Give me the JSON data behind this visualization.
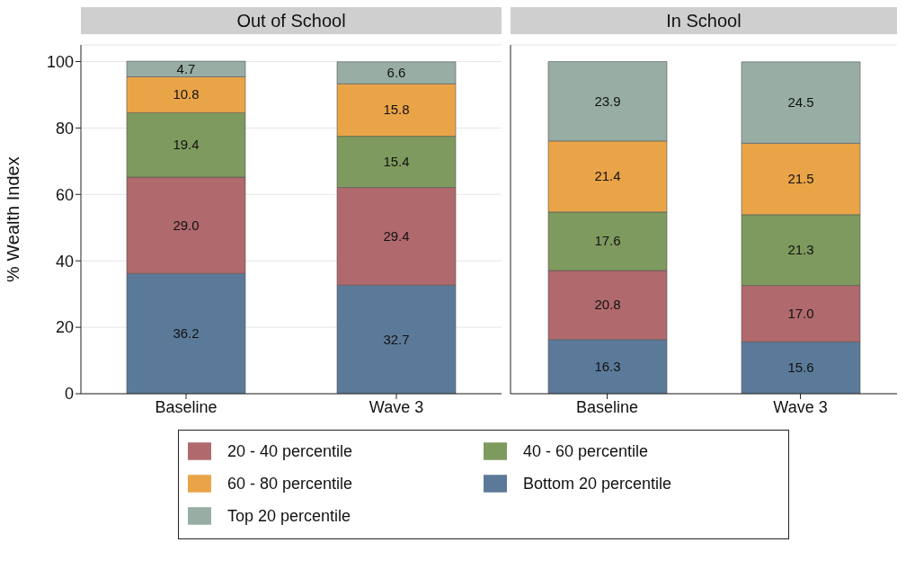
{
  "chart_data": [
    {
      "type": "bar",
      "title": "Out of School",
      "ylabel": "% Wealth Index",
      "categories": [
        "Baseline",
        "Wave 3"
      ],
      "stacked": true,
      "ylim": [
        0,
        105
      ],
      "yticks": [
        0,
        20,
        40,
        60,
        80,
        100
      ],
      "grid": "y",
      "legend": "bottom",
      "series": [
        {
          "name": "Bottom 20 percentile",
          "color": "#5b7a99",
          "values": [
            36.2,
            32.7
          ],
          "value_labels": [
            "36.2",
            "32.7"
          ]
        },
        {
          "name": "20 - 40 percentile",
          "color": "#b0696d",
          "values": [
            29.0,
            29.4
          ],
          "value_labels": [
            "29.0",
            "29.4"
          ]
        },
        {
          "name": "40 - 60 percentile",
          "color": "#7e9a5e",
          "values": [
            19.4,
            15.4
          ],
          "value_labels": [
            "19.4",
            "15.4"
          ]
        },
        {
          "name": "60 - 80 percentile",
          "color": "#eaa448",
          "values": [
            10.8,
            15.8
          ],
          "value_labels": [
            "10.8",
            "15.8"
          ]
        },
        {
          "name": "Top 20 percentile",
          "color": "#98aea5",
          "values": [
            4.7,
            6.6
          ],
          "value_labels": [
            "4.7",
            "6.6"
          ]
        }
      ]
    },
    {
      "type": "bar",
      "title": "In School",
      "categories": [
        "Baseline",
        "Wave 3"
      ],
      "stacked": true,
      "ylim": [
        0,
        105
      ],
      "yticks": [
        0,
        20,
        40,
        60,
        80,
        100
      ],
      "grid": "y",
      "tick_labels": "x",
      "series": [
        {
          "color": "#5b7a99",
          "values": [
            16.3,
            15.6
          ],
          "value_labels": [
            "16.3",
            "15.6"
          ]
        },
        {
          "color": "#b0696d",
          "values": [
            20.8,
            17.0
          ],
          "value_labels": [
            "20.8",
            "17.0"
          ]
        },
        {
          "color": "#7e9a5e",
          "values": [
            17.6,
            21.3
          ],
          "value_labels": [
            "17.6",
            "21.3"
          ]
        },
        {
          "color": "#eaa448",
          "values": [
            21.4,
            21.5
          ],
          "value_labels": [
            "21.4",
            "21.5"
          ]
        },
        {
          "color": "#98aea5",
          "values": [
            23.9,
            24.5
          ],
          "value_labels": [
            "23.9",
            "24.5"
          ]
        }
      ]
    }
  ]
}
